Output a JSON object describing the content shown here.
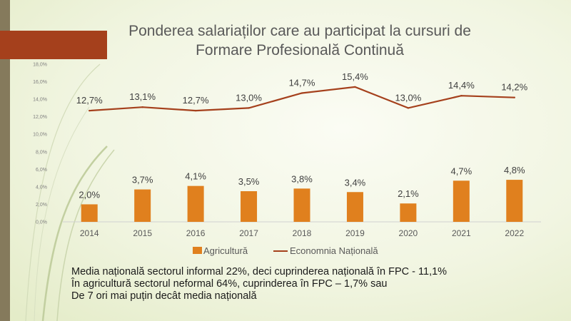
{
  "title_lines": [
    "Ponderea salariaților care au participat la cursuri de",
    "Formare Profesională Continuă"
  ],
  "caption_lines": [
    "Media națională sectorul informal 22%, deci cuprinderea națională în FPC -  11,1%",
    "În agricultură sectorul neformal 64%, cuprinderea în FPC – 1,7% sau",
    "De 7 ori mai puțin decât media națională"
  ],
  "colors": {
    "bar": "#e0801e",
    "line": "#a5401c",
    "accent": "#a5401c",
    "strip": "#857a5c"
  },
  "chart_data": {
    "type": "bar",
    "categories": [
      "2014",
      "2015",
      "2016",
      "2017",
      "2018",
      "2019",
      "2020",
      "2021",
      "2022"
    ],
    "series": [
      {
        "name": "Agricultură",
        "type": "bar",
        "values": [
          2.0,
          3.7,
          4.1,
          3.5,
          3.8,
          3.4,
          2.1,
          4.7,
          4.8
        ],
        "labels": [
          "2,0%",
          "3,7%",
          "4,1%",
          "3,5%",
          "3,8%",
          "3,4%",
          "2,1%",
          "4,7%",
          "4,8%"
        ]
      },
      {
        "name": "Economnia Națională",
        "type": "line",
        "values": [
          12.7,
          13.1,
          12.7,
          13.0,
          14.7,
          15.4,
          13.0,
          14.4,
          14.2
        ],
        "labels": [
          "12,7%",
          "13,1%",
          "12,7%",
          "13,0%",
          "14,7%",
          "15,4%",
          "13,0%",
          "14,4%",
          "14,2%"
        ]
      }
    ],
    "ylim": [
      0,
      18
    ],
    "yticks": [
      "0,0%",
      "2,0%",
      "4,0%",
      "6,0%",
      "8,0%",
      "10,0%",
      "12,0%",
      "14,0%",
      "16,0%",
      "18,0%"
    ],
    "grid": false,
    "legend": "bottom"
  }
}
